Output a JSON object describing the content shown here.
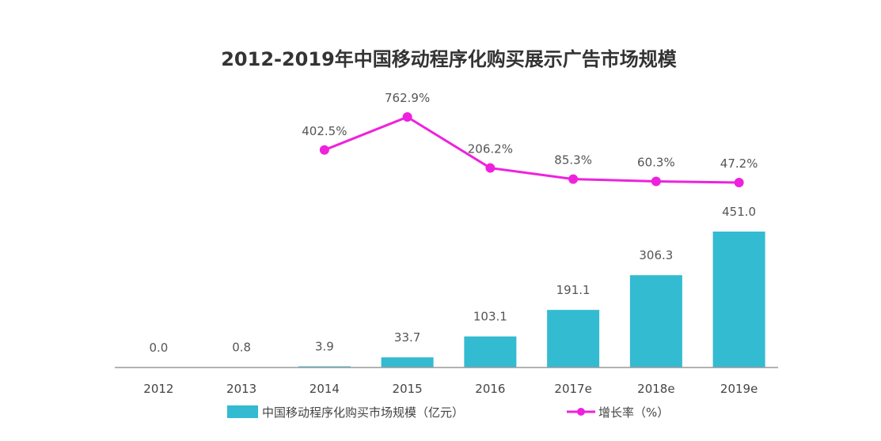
{
  "chart_data": {
    "type": "bar",
    "title": "2012-2019年中国移动程序化购买展示广告市场规模",
    "categories": [
      "2012",
      "2013",
      "2014",
      "2015",
      "2016",
      "2017e",
      "2018e",
      "2019e"
    ],
    "series": [
      {
        "name": "中国移动程序化购买市场规模（亿元）",
        "type": "bar",
        "values": [
          0.0,
          0.8,
          3.9,
          33.7,
          103.1,
          191.1,
          306.3,
          451.0
        ],
        "labels": [
          "0.0",
          "0.8",
          "3.9",
          "33.7",
          "103.1",
          "191.1",
          "306.3",
          "451.0"
        ],
        "color": "#33BBD1"
      },
      {
        "name": "增长率（%）",
        "type": "line",
        "values": [
          null,
          null,
          402.5,
          762.9,
          206.2,
          85.3,
          60.3,
          47.2
        ],
        "labels": [
          "",
          "",
          "402.5%",
          "762.9%",
          "206.2%",
          "85.3%",
          "60.3%",
          "47.2%"
        ],
        "color": "#EE22DD"
      }
    ],
    "xlabel": "",
    "ylabel": "",
    "grid": false,
    "legend": "bottom"
  }
}
